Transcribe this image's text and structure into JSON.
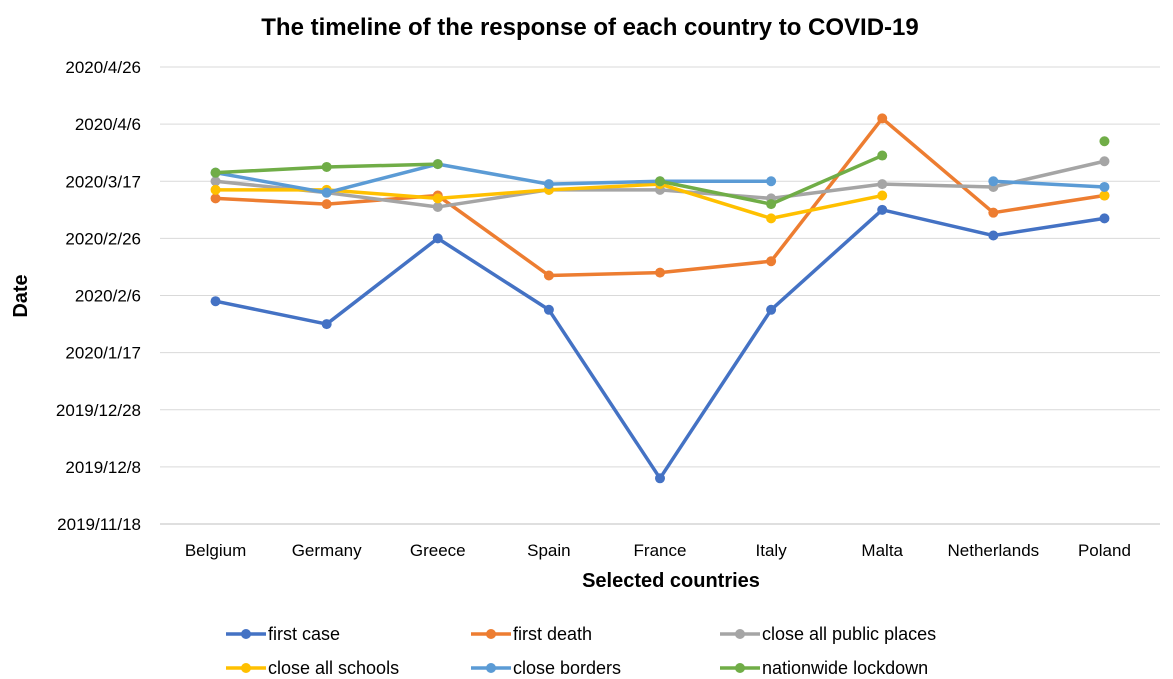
{
  "chart_data": {
    "type": "line",
    "title": "The timeline of the response of each country to COVID-19",
    "xlabel": "Selected countries",
    "ylabel": "Date",
    "categories": [
      "Belgium",
      "Germany",
      "Greece",
      "Spain",
      "France",
      "Italy",
      "Malta",
      "Netherlands",
      "Poland"
    ],
    "y_ticks": [
      "2019/11/18",
      "2019/12/8",
      "2019/12/28",
      "2020/1/17",
      "2020/2/6",
      "2020/2/26",
      "2020/3/17",
      "2020/4/6",
      "2020/4/26"
    ],
    "ylim": [
      "2019-11-18",
      "2020-04-26"
    ],
    "grid": true,
    "legend_position": "bottom",
    "series": [
      {
        "name": "first case",
        "color": "#4472C4",
        "values": [
          "2020-02-04",
          "2020-01-27",
          "2020-02-26",
          "2020-02-01",
          "2019-12-04",
          "2020-02-01",
          "2020-03-07",
          "2020-02-27",
          "2020-03-04"
        ]
      },
      {
        "name": "first death",
        "color": "#ED7D31",
        "values": [
          "2020-03-11",
          "2020-03-09",
          "2020-03-12",
          "2020-02-13",
          "2020-02-14",
          "2020-02-18",
          "2020-04-08",
          "2020-03-06",
          "2020-03-12"
        ]
      },
      {
        "name": "close all public places",
        "color": "#A5A5A5",
        "values": [
          "2020-03-17",
          "2020-03-13",
          "2020-03-08",
          "2020-03-14",
          "2020-03-14",
          "2020-03-11",
          "2020-03-16",
          "2020-03-15",
          "2020-03-24"
        ]
      },
      {
        "name": "close all schools",
        "color": "#FFC000",
        "values": [
          "2020-03-14",
          "2020-03-14",
          "2020-03-11",
          "2020-03-14",
          "2020-03-16",
          "2020-03-04",
          "2020-03-12",
          null,
          "2020-03-12"
        ]
      },
      {
        "name": "close borders",
        "color": "#5B9BD5",
        "values": [
          "2020-03-20",
          "2020-03-13",
          "2020-03-23",
          "2020-03-16",
          "2020-03-17",
          "2020-03-17",
          null,
          "2020-03-17",
          "2020-03-15"
        ]
      },
      {
        "name": "nationwide lockdown",
        "color": "#70AD47",
        "values": [
          "2020-03-20",
          "2020-03-22",
          "2020-03-23",
          null,
          "2020-03-17",
          "2020-03-09",
          "2020-03-26",
          null,
          "2020-03-31"
        ]
      }
    ]
  }
}
